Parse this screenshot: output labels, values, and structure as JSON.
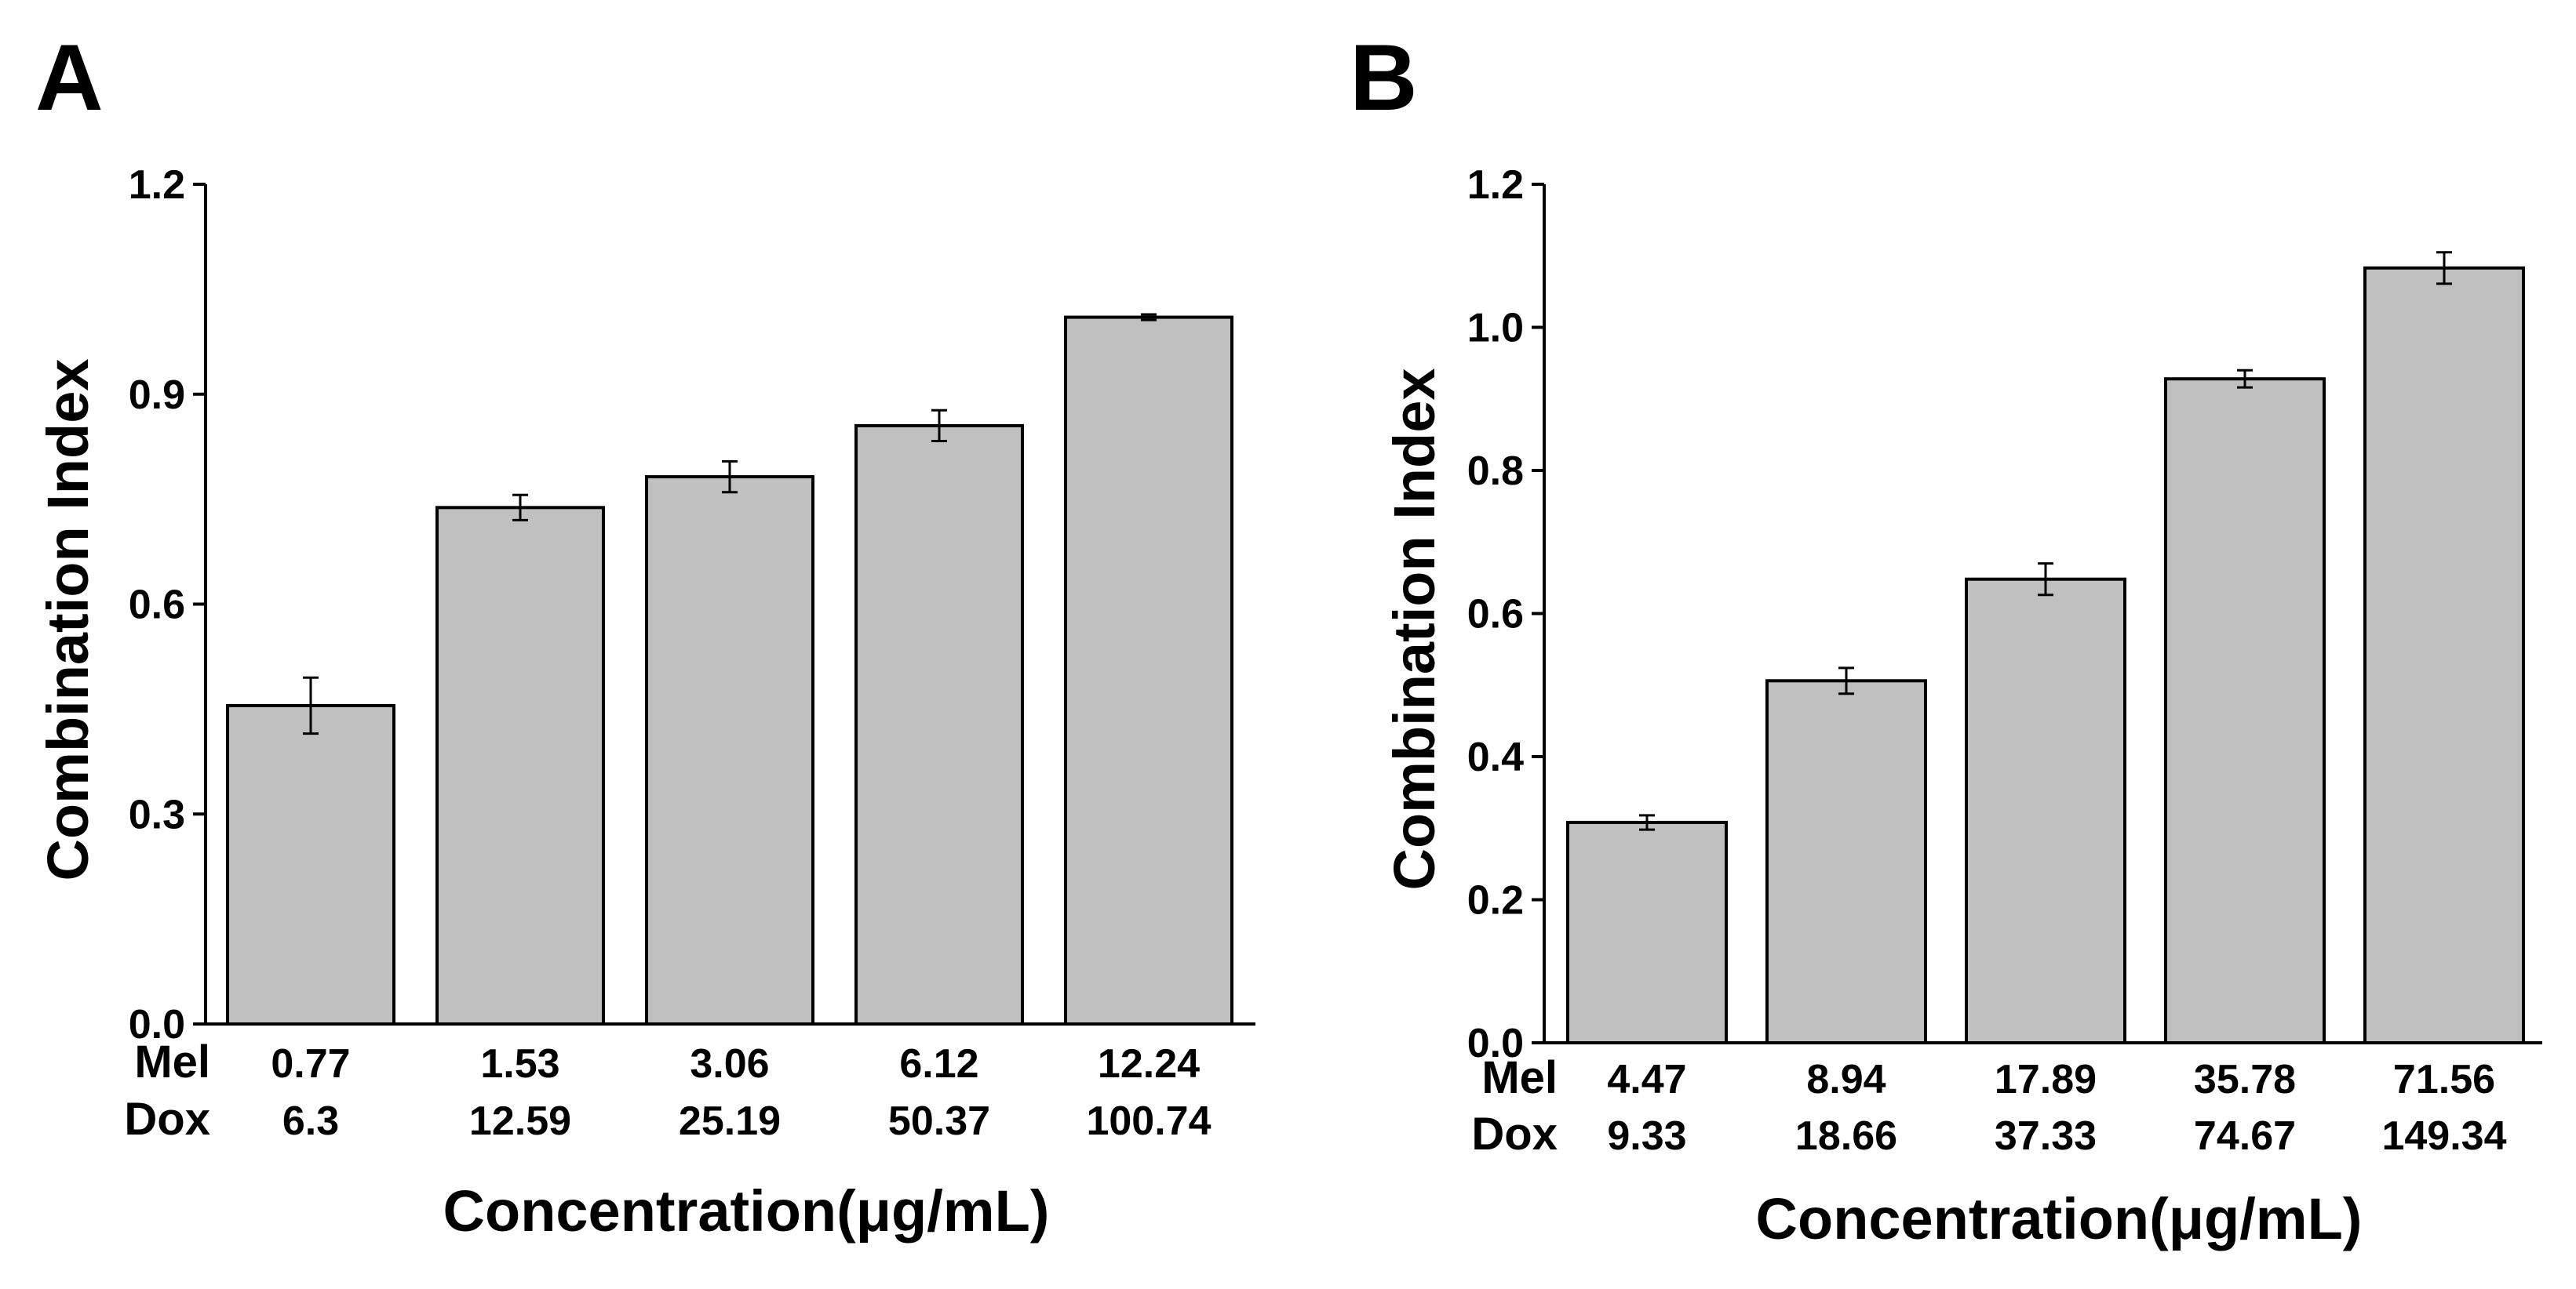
{
  "chart_data": [
    {
      "type": "bar",
      "panel_label": "A",
      "title": "",
      "xlabel": "Concentration(μg/mL)",
      "ylabel": "Combination Index",
      "ylim": [
        0,
        1.2
      ],
      "yticks": [
        0.0,
        0.3,
        0.6,
        0.9,
        1.2
      ],
      "ytick_labels": [
        "0.0",
        "0.3",
        "0.6",
        "0.9",
        "1.2"
      ],
      "category_rows": [
        {
          "label": "Mel",
          "values": [
            "0.77",
            "1.53",
            "3.06",
            "6.12",
            "12.24"
          ]
        },
        {
          "label": "Dox",
          "values": [
            "6.3",
            "12.59",
            "25.19",
            "50.37",
            "100.74"
          ]
        }
      ],
      "values": [
        0.455,
        0.738,
        0.782,
        0.855,
        1.01
      ],
      "errors": [
        0.04,
        0.018,
        0.022,
        0.022,
        0.004
      ],
      "bar_color": "#c0c0c0",
      "grid": false
    },
    {
      "type": "bar",
      "panel_label": "B",
      "title": "",
      "xlabel": "Concentration(μg/mL)",
      "ylabel": "Combination Index",
      "ylim": [
        0,
        1.2
      ],
      "yticks": [
        0.0,
        0.2,
        0.4,
        0.6,
        0.8,
        1.0,
        1.2
      ],
      "ytick_labels": [
        "0.0",
        "0.2",
        "0.4",
        "0.6",
        "0.8",
        "1.0",
        "1.2"
      ],
      "category_rows": [
        {
          "label": "Mel",
          "values": [
            "4.47",
            "8.94",
            "17.89",
            "35.78",
            "71.56"
          ]
        },
        {
          "label": "Dox",
          "values": [
            "9.33",
            "18.66",
            "37.33",
            "74.67",
            "149.34"
          ]
        }
      ],
      "values": [
        0.308,
        0.506,
        0.648,
        0.928,
        1.083
      ],
      "errors": [
        0.01,
        0.018,
        0.022,
        0.012,
        0.022
      ],
      "bar_color": "#c0c0c0",
      "grid": false
    }
  ]
}
